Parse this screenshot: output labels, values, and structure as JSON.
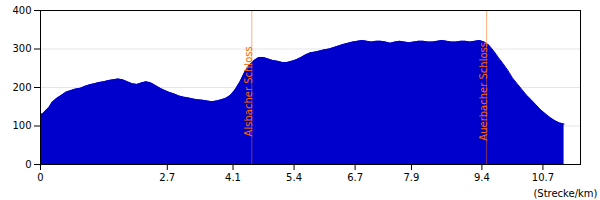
{
  "chart_data": {
    "type": "area",
    "xlabel": "(Strecke/km)",
    "color": "#0000cc",
    "grid": true,
    "xlim": [
      0,
      11.5
    ],
    "xticks": [
      0,
      2.7,
      4.1,
      5.4,
      6.7,
      7.9,
      9.4,
      10.7
    ],
    "ylim": [
      0,
      400
    ],
    "yticks": [
      0,
      100,
      200,
      300,
      400
    ],
    "x": [
      0.0,
      0.05,
      0.1,
      0.18,
      0.25,
      0.35,
      0.45,
      0.55,
      0.65,
      0.75,
      0.85,
      0.95,
      1.05,
      1.15,
      1.25,
      1.35,
      1.45,
      1.55,
      1.65,
      1.75,
      1.85,
      1.95,
      2.05,
      2.15,
      2.25,
      2.35,
      2.45,
      2.55,
      2.65,
      2.75,
      2.85,
      2.95,
      3.05,
      3.15,
      3.25,
      3.35,
      3.45,
      3.55,
      3.65,
      3.75,
      3.85,
      3.95,
      4.05,
      4.15,
      4.25,
      4.35,
      4.45,
      4.55,
      4.65,
      4.75,
      4.85,
      4.95,
      5.05,
      5.15,
      5.25,
      5.35,
      5.45,
      5.55,
      5.65,
      5.75,
      5.85,
      5.95,
      6.05,
      6.15,
      6.25,
      6.35,
      6.45,
      6.55,
      6.65,
      6.75,
      6.85,
      6.95,
      7.05,
      7.15,
      7.25,
      7.35,
      7.45,
      7.55,
      7.65,
      7.75,
      7.85,
      7.95,
      8.05,
      8.15,
      8.25,
      8.35,
      8.45,
      8.55,
      8.65,
      8.75,
      8.85,
      8.95,
      9.05,
      9.15,
      9.25,
      9.35,
      9.45,
      9.55,
      9.65,
      9.75,
      9.85,
      9.95,
      10.05,
      10.15,
      10.25,
      10.35,
      10.45,
      10.55,
      10.65,
      10.75,
      10.85,
      10.95,
      11.05,
      11.15
    ],
    "values": [
      130,
      132,
      138,
      148,
      162,
      172,
      180,
      188,
      192,
      196,
      198,
      203,
      207,
      210,
      213,
      215,
      218,
      220,
      222,
      220,
      215,
      210,
      208,
      212,
      215,
      212,
      205,
      198,
      192,
      187,
      183,
      178,
      175,
      173,
      170,
      168,
      167,
      165,
      163,
      165,
      168,
      172,
      180,
      195,
      215,
      240,
      258,
      270,
      278,
      278,
      274,
      270,
      268,
      265,
      265,
      268,
      272,
      278,
      285,
      290,
      292,
      295,
      298,
      300,
      304,
      308,
      312,
      315,
      318,
      320,
      322,
      320,
      318,
      320,
      320,
      318,
      315,
      318,
      320,
      318,
      316,
      318,
      320,
      320,
      318,
      318,
      320,
      322,
      320,
      318,
      318,
      320,
      320,
      318,
      320,
      322,
      318,
      310,
      295,
      278,
      262,
      245,
      225,
      210,
      195,
      180,
      168,
      155,
      142,
      132,
      122,
      114,
      108,
      105
    ],
    "annotations": [
      {
        "x": 4.5,
        "y": 190,
        "text": "Alsbacher Schloss",
        "color": "#ff6600"
      },
      {
        "x": 9.5,
        "y": 190,
        "text": "Auerbacher Schloss",
        "color": "#ff6600"
      }
    ]
  }
}
